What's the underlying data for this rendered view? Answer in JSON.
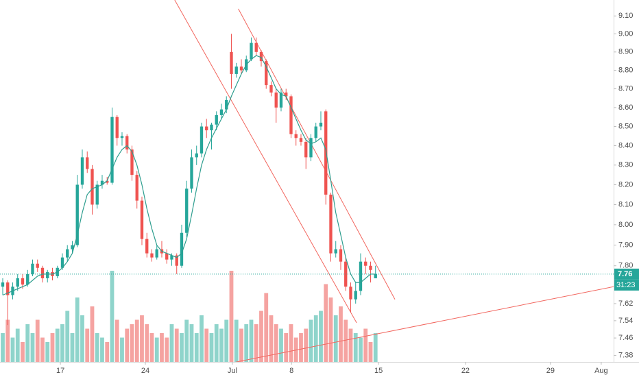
{
  "chart_data": {
    "type": "candlestick",
    "log_scale": true,
    "grid": false,
    "up_color": "#26a69a",
    "down_color": "#ef5350",
    "up_volume_color": "#8fd4cb",
    "down_volume_color": "#f5a3a1",
    "ma_color": "#2e9e8f",
    "trend_color": "#f2665e",
    "open": [
      7.7,
      7.72,
      7.66,
      7.7,
      7.74,
      7.71,
      7.76,
      7.81,
      7.79,
      7.74,
      7.77,
      7.75,
      7.79,
      7.84,
      7.88,
      7.9,
      8.2,
      8.34,
      8.28,
      8.1,
      8.2,
      8.22,
      8.21,
      8.55,
      8.44,
      8.45,
      8.38,
      8.25,
      8.12,
      7.93,
      7.86,
      7.84,
      7.88,
      7.86,
      7.83,
      7.85,
      7.8,
      7.96,
      8.18,
      8.34,
      8.36,
      8.5,
      8.48,
      8.51,
      8.56,
      8.59,
      8.9,
      8.78,
      8.82,
      8.8,
      8.86,
      8.95,
      8.9,
      8.85,
      8.72,
      8.68,
      8.6,
      8.68,
      8.66,
      8.46,
      8.44,
      8.42,
      8.34,
      8.44,
      8.5,
      8.58,
      8.15,
      7.86,
      7.88,
      7.82,
      7.7,
      7.64,
      7.68,
      7.82,
      7.8,
      7.74
    ],
    "high": [
      7.74,
      7.73,
      7.72,
      7.76,
      7.76,
      7.78,
      7.83,
      7.83,
      7.8,
      7.78,
      7.79,
      7.8,
      7.86,
      7.9,
      7.92,
      8.25,
      8.38,
      8.37,
      8.3,
      8.22,
      8.25,
      8.24,
      8.6,
      8.56,
      8.47,
      8.46,
      8.4,
      8.27,
      8.14,
      7.96,
      7.88,
      7.9,
      7.92,
      7.88,
      7.86,
      7.86,
      8.0,
      8.22,
      8.38,
      8.4,
      8.52,
      8.54,
      8.52,
      8.58,
      8.62,
      8.66,
      9.0,
      8.84,
      8.86,
      8.88,
      8.98,
      8.98,
      8.91,
      8.86,
      8.74,
      8.7,
      8.7,
      8.7,
      8.67,
      8.48,
      8.46,
      8.44,
      8.46,
      8.52,
      8.58,
      8.59,
      8.16,
      7.92,
      7.9,
      7.84,
      7.72,
      7.72,
      7.86,
      7.84,
      7.82,
      7.8
    ],
    "low": [
      7.66,
      7.52,
      7.64,
      7.68,
      7.69,
      7.7,
      7.75,
      7.77,
      7.72,
      7.72,
      7.73,
      7.74,
      7.78,
      7.82,
      7.86,
      7.89,
      8.18,
      8.26,
      8.05,
      8.08,
      8.18,
      8.2,
      8.2,
      8.4,
      8.4,
      8.36,
      8.22,
      8.08,
      7.9,
      7.84,
      7.82,
      7.83,
      7.84,
      7.81,
      7.8,
      7.76,
      7.79,
      7.94,
      8.16,
      8.3,
      8.34,
      8.44,
      8.38,
      8.48,
      8.54,
      8.57,
      8.7,
      8.76,
      8.78,
      8.79,
      8.85,
      8.88,
      8.82,
      8.7,
      8.66,
      8.52,
      8.58,
      8.64,
      8.44,
      8.4,
      8.4,
      8.28,
      8.32,
      8.42,
      8.48,
      8.1,
      7.82,
      7.84,
      7.78,
      7.68,
      7.58,
      7.62,
      7.66,
      7.76,
      7.72,
      7.74
    ],
    "close": [
      7.72,
      7.66,
      7.7,
      7.74,
      7.71,
      7.76,
      7.81,
      7.79,
      7.74,
      7.77,
      7.75,
      7.79,
      7.84,
      7.88,
      7.9,
      8.2,
      8.34,
      8.28,
      8.1,
      8.2,
      8.22,
      8.21,
      8.55,
      8.44,
      8.45,
      8.38,
      8.25,
      8.12,
      7.93,
      7.86,
      7.84,
      7.88,
      7.86,
      7.83,
      7.85,
      7.8,
      7.96,
      8.18,
      8.34,
      8.36,
      8.5,
      8.48,
      8.51,
      8.56,
      8.59,
      8.64,
      8.78,
      8.82,
      8.8,
      8.86,
      8.95,
      8.9,
      8.85,
      8.72,
      8.68,
      8.6,
      8.68,
      8.66,
      8.46,
      8.44,
      8.42,
      8.34,
      8.44,
      8.5,
      8.52,
      8.15,
      7.86,
      7.88,
      7.82,
      7.7,
      7.64,
      7.68,
      7.82,
      7.8,
      7.78,
      7.76
    ],
    "volume": [
      30,
      45,
      25,
      35,
      20,
      40,
      30,
      45,
      25,
      20,
      30,
      35,
      40,
      55,
      30,
      70,
      50,
      35,
      60,
      30,
      25,
      20,
      100,
      45,
      25,
      35,
      40,
      45,
      50,
      40,
      30,
      25,
      30,
      25,
      40,
      35,
      30,
      45,
      40,
      30,
      50,
      35,
      30,
      40,
      35,
      45,
      100,
      45,
      35,
      40,
      45,
      40,
      55,
      75,
      50,
      40,
      35,
      30,
      40,
      25,
      30,
      35,
      45,
      50,
      55,
      85,
      70,
      50,
      60,
      45,
      35,
      30,
      25,
      35,
      20,
      30
    ],
    "ma": [
      7.66,
      7.67,
      7.68,
      7.69,
      7.7,
      7.71,
      7.73,
      7.75,
      7.76,
      7.76,
      7.76,
      7.77,
      7.79,
      7.82,
      7.86,
      7.95,
      8.06,
      8.15,
      8.18,
      8.19,
      8.2,
      8.22,
      8.28,
      8.34,
      8.38,
      8.4,
      8.37,
      8.3,
      8.2,
      8.08,
      7.98,
      7.9,
      7.87,
      7.86,
      7.85,
      7.84,
      7.86,
      7.93,
      8.05,
      8.18,
      8.3,
      8.38,
      8.44,
      8.49,
      8.54,
      8.59,
      8.66,
      8.72,
      8.78,
      8.83,
      8.86,
      8.88,
      8.87,
      8.82,
      8.76,
      8.7,
      8.67,
      8.66,
      8.6,
      8.54,
      8.48,
      8.43,
      8.41,
      8.42,
      8.44,
      8.38,
      8.22,
      8.06,
      7.95,
      7.84,
      7.76,
      7.72,
      7.72,
      7.74,
      7.76,
      7.76
    ],
    "volume_lim": [
      0,
      100
    ],
    "xlim": [
      -0.55,
      122.9
    ],
    "xticks": [
      {
        "value": 11.6,
        "label": "17"
      },
      {
        "value": 28.7,
        "label": "24"
      },
      {
        "value": 46.2,
        "label": "Jul"
      },
      {
        "value": 58.1,
        "label": "8"
      },
      {
        "value": 75.6,
        "label": "15"
      },
      {
        "value": 93.1,
        "label": "22"
      },
      {
        "value": 110.2,
        "label": "29"
      },
      {
        "value": 120.4,
        "label": "Aug"
      }
    ],
    "ylim": [
      7.36,
      9.19
    ],
    "yticks": [
      {
        "value": 9.1,
        "label": "9.10"
      },
      {
        "value": 9.0,
        "label": "9.00"
      },
      {
        "value": 8.9,
        "label": "8.90"
      },
      {
        "value": 8.8,
        "label": "8.80"
      },
      {
        "value": 8.7,
        "label": "8.70"
      },
      {
        "value": 8.6,
        "label": "8.60"
      },
      {
        "value": 8.5,
        "label": "8.50"
      },
      {
        "value": 8.4,
        "label": "8.40"
      },
      {
        "value": 8.3,
        "label": "8.30"
      },
      {
        "value": 8.2,
        "label": "8.20"
      },
      {
        "value": 8.1,
        "label": "8.10"
      },
      {
        "value": 8.0,
        "label": "8.00"
      },
      {
        "value": 7.9,
        "label": "7.90"
      },
      {
        "value": 7.8,
        "label": "7.80"
      },
      {
        "value": 7.62,
        "label": "7.62"
      },
      {
        "value": 7.54,
        "label": "7.54"
      },
      {
        "value": 7.46,
        "label": "7.46"
      },
      {
        "value": 7.38,
        "label": "7.38"
      }
    ],
    "trend_lines": [
      {
        "x": [
          34.6,
          71.2
        ],
        "y": [
          9.19,
          7.53
        ]
      },
      {
        "x": [
          47.4,
          78.9
        ],
        "y": [
          9.14,
          7.64
        ]
      },
      {
        "x": [
          46.9,
          122.9
        ],
        "y": [
          7.35,
          7.7
        ]
      }
    ],
    "price_line": {
      "value": 7.76,
      "label": "7.76",
      "countdown": "31:23"
    }
  }
}
